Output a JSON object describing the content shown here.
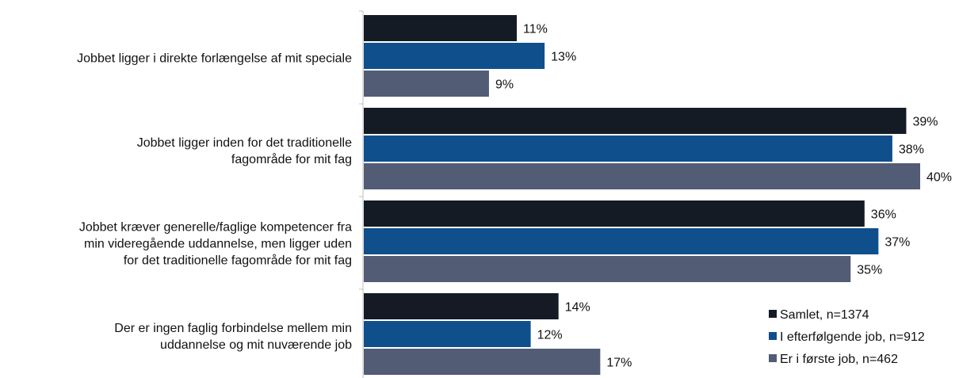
{
  "chart_data": {
    "type": "bar",
    "orientation": "horizontal",
    "categories": [
      [
        "Jobbet ligger i direkte forlængelse af mit speciale"
      ],
      [
        "Jobbet ligger inden for det traditionelle",
        "fagområde for mit fag"
      ],
      [
        "Jobbet kræver generelle/faglige kompetencer fra",
        "min videregående uddannelse, men ligger uden",
        "for det traditionelle fagområde for mit fag"
      ],
      [
        "Der er ingen faglig forbindelse mellem min",
        "uddannelse og mit nuværende job"
      ]
    ],
    "series": [
      {
        "name": "Samlet, n=1374",
        "color": "#141b24",
        "values": [
          11,
          39,
          36,
          14
        ]
      },
      {
        "name": "I efterfølgende job, n=912",
        "color": "#0f4f8c",
        "values": [
          13,
          38,
          37,
          12
        ]
      },
      {
        "name": "Er i første job, n=462",
        "color": "#535c75",
        "values": [
          9,
          40,
          35,
          17
        ]
      }
    ],
    "value_suffix": "%",
    "xlim": [
      0,
      40
    ],
    "grid": false,
    "legend_position": "bottom-right"
  }
}
